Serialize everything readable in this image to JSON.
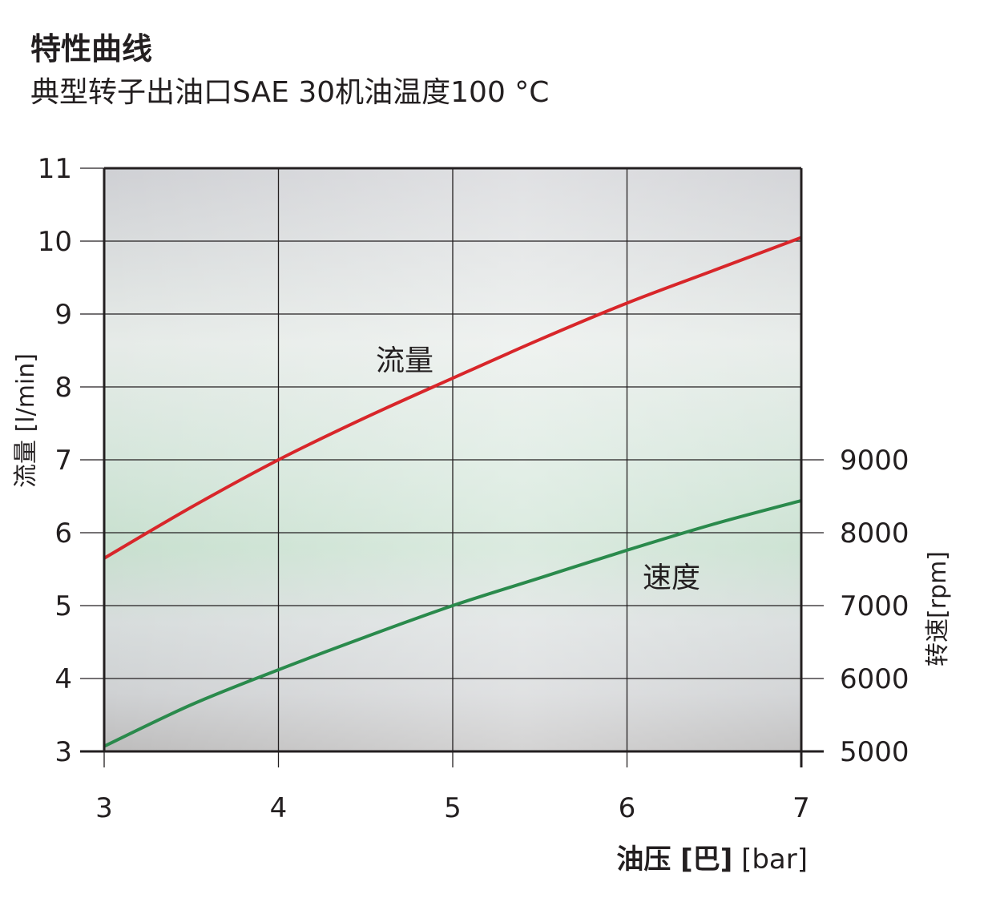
{
  "title": "特性曲线",
  "subtitle": "典型转子出油口SAE 30机油温度100 °C",
  "colors": {
    "flow": "#d8262a",
    "speed": "#2a8a4c",
    "axis": "#231f20"
  },
  "chart_data": {
    "type": "line",
    "xlabel": {
      "bold": "油压 [巴]",
      "normal": " [bar]"
    },
    "ylabel_left": "流量 [l/min]",
    "ylabel_right": "转速[rpm]",
    "xlim": [
      3,
      7
    ],
    "ylim_left": [
      3,
      11
    ],
    "ylim_right": [
      5000,
      9000
    ],
    "x_ticks": [
      3,
      4,
      5,
      6,
      7
    ],
    "y_ticks_left": [
      3,
      4,
      5,
      6,
      7,
      8,
      9,
      10,
      11
    ],
    "y_ticks_right": [
      5000,
      6000,
      7000,
      8000,
      9000
    ],
    "grid": true,
    "series": [
      {
        "name": "流量",
        "axis": "left",
        "x": [
          3,
          3.5,
          4,
          4.5,
          5,
          5.5,
          6,
          6.5,
          7
        ],
        "y": [
          5.65,
          6.35,
          7.0,
          7.58,
          8.12,
          8.65,
          9.15,
          9.6,
          10.05
        ]
      },
      {
        "name": "速度",
        "axis": "right",
        "x": [
          3,
          3.5,
          4,
          4.5,
          5,
          5.5,
          6,
          6.5,
          7
        ],
        "y": [
          5070,
          5640,
          6120,
          6570,
          7000,
          7380,
          7760,
          8120,
          8440
        ]
      }
    ]
  }
}
